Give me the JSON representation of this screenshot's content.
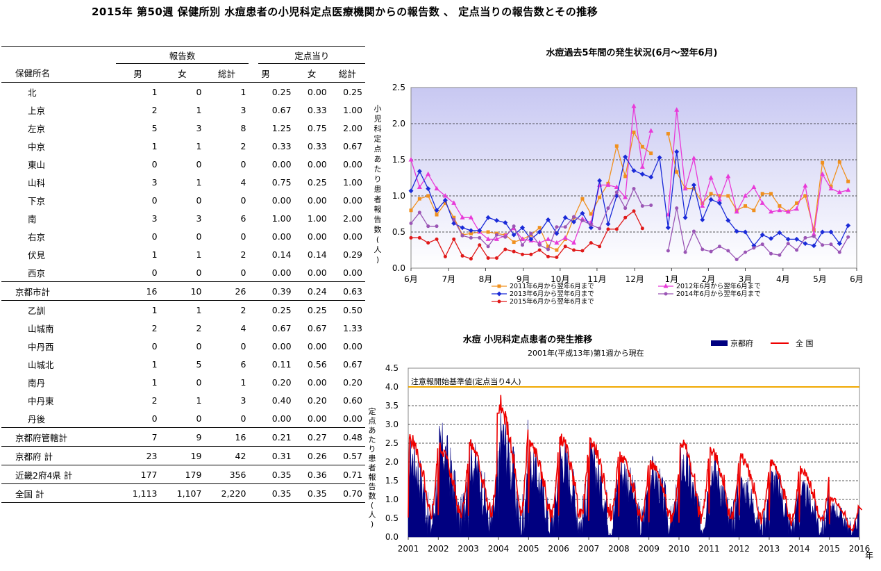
{
  "page_title": "2015年 第50週 保健所別 水痘患者の小児科定点医療機関からの報告数 、 定点当りの報告数とその推移",
  "table": {
    "group_headers": {
      "reports": "報告数",
      "per_sentinel": "定点当り"
    },
    "col_headers": [
      "保健所名",
      "男",
      "女",
      "総計",
      "男",
      "女",
      "総計"
    ],
    "rows": [
      {
        "name": "北",
        "m": "1",
        "f": "0",
        "t": "1",
        "pm": "0.25",
        "pf": "0.00",
        "pt": "0.25"
      },
      {
        "name": "上京",
        "m": "2",
        "f": "1",
        "t": "3",
        "pm": "0.67",
        "pf": "0.33",
        "pt": "1.00"
      },
      {
        "name": "左京",
        "m": "5",
        "f": "3",
        "t": "8",
        "pm": "1.25",
        "pf": "0.75",
        "pt": "2.00"
      },
      {
        "name": "中京",
        "m": "1",
        "f": "1",
        "t": "2",
        "pm": "0.33",
        "pf": "0.33",
        "pt": "0.67"
      },
      {
        "name": "東山",
        "m": "0",
        "f": "0",
        "t": "0",
        "pm": "0.00",
        "pf": "0.00",
        "pt": "0.00"
      },
      {
        "name": "山科",
        "m": "3",
        "f": "1",
        "t": "4",
        "pm": "0.75",
        "pf": "0.25",
        "pt": "1.00"
      },
      {
        "name": "下京",
        "m": "0",
        "f": "0",
        "t": "0",
        "pm": "0.00",
        "pf": "0.00",
        "pt": "0.00"
      },
      {
        "name": "南",
        "m": "3",
        "f": "3",
        "t": "6",
        "pm": "1.00",
        "pf": "1.00",
        "pt": "2.00"
      },
      {
        "name": "右京",
        "m": "0",
        "f": "0",
        "t": "0",
        "pm": "0.00",
        "pf": "0.00",
        "pt": "0.00"
      },
      {
        "name": "伏見",
        "m": "1",
        "f": "1",
        "t": "2",
        "pm": "0.14",
        "pf": "0.14",
        "pt": "0.29"
      },
      {
        "name": "西京",
        "m": "0",
        "f": "0",
        "t": "0",
        "pm": "0.00",
        "pf": "0.00",
        "pt": "0.00"
      },
      {
        "name": "京都市計",
        "m": "16",
        "f": "10",
        "t": "26",
        "pm": "0.39",
        "pf": "0.24",
        "pt": "0.63",
        "total": true
      },
      {
        "name": "乙訓",
        "m": "1",
        "f": "1",
        "t": "2",
        "pm": "0.25",
        "pf": "0.25",
        "pt": "0.50"
      },
      {
        "name": "山城南",
        "m": "2",
        "f": "2",
        "t": "4",
        "pm": "0.67",
        "pf": "0.67",
        "pt": "1.33"
      },
      {
        "name": "中丹西",
        "m": "0",
        "f": "0",
        "t": "0",
        "pm": "0.00",
        "pf": "0.00",
        "pt": "0.00"
      },
      {
        "name": "山城北",
        "m": "1",
        "f": "5",
        "t": "6",
        "pm": "0.11",
        "pf": "0.56",
        "pt": "0.67"
      },
      {
        "name": "南丹",
        "m": "1",
        "f": "0",
        "t": "1",
        "pm": "0.20",
        "pf": "0.00",
        "pt": "0.20"
      },
      {
        "name": "中丹東",
        "m": "2",
        "f": "1",
        "t": "3",
        "pm": "0.40",
        "pf": "0.20",
        "pt": "0.60"
      },
      {
        "name": "丹後",
        "m": "0",
        "f": "0",
        "t": "0",
        "pm": "0.00",
        "pf": "0.00",
        "pt": "0.00"
      },
      {
        "name": "京都府管轄計",
        "m": "7",
        "f": "9",
        "t": "16",
        "pm": "0.21",
        "pf": "0.27",
        "pt": "0.48",
        "total": true
      },
      {
        "name": "京都府 計",
        "m": "23",
        "f": "19",
        "t": "42",
        "pm": "0.31",
        "pf": "0.26",
        "pt": "0.57",
        "total": true
      },
      {
        "name": "近畿2府4県 計",
        "m": "177",
        "f": "179",
        "t": "356",
        "pm": "0.35",
        "pf": "0.36",
        "pt": "0.71",
        "total": true
      },
      {
        "name": "全国 計",
        "m": "1,113",
        "f": "1,107",
        "t": "2,220",
        "pm": "0.35",
        "pf": "0.35",
        "pt": "0.70",
        "total": true
      }
    ]
  },
  "chart_data": [
    {
      "type": "line",
      "title": "水痘過去5年間の発生状況(6月～翌年6月)",
      "ylabel": "小児科定点あたり患者報告数(人)",
      "ylim": [
        0,
        2.5
      ],
      "yticks": [
        "0.0",
        "0.5",
        "1.0",
        "1.5",
        "2.0",
        "2.5"
      ],
      "xticks": [
        "6月",
        "7月",
        "8月",
        "9月",
        "10月",
        "11月",
        "12月",
        "1月",
        "2月",
        "3月",
        "4月",
        "5月",
        "6月"
      ],
      "x_range": [
        0,
        52
      ],
      "grid": "horizontal dashed",
      "legend_position": "bottom",
      "series": [
        {
          "name": "2011年6月から翌年6月まで",
          "color": "#f0901e",
          "marker": "square",
          "values": [
            0.8,
            0.96,
            1.0,
            0.74,
            0.9,
            0.7,
            0.46,
            0.48,
            0.5,
            0.5,
            0.48,
            0.46,
            0.36,
            0.4,
            0.46,
            0.56,
            0.3,
            0.25,
            0.4,
            0.7,
            0.96,
            0.75,
            0.98,
            1.17,
            1.69,
            1.27,
            1.88,
            1.68,
            1.59,
            null,
            1.86,
            1.33,
            1.1,
            1.1,
            0.9,
            1.03,
            1.0,
            1.0,
            0.8,
            0.86,
            0.8,
            1.03,
            1.03,
            0.86,
            0.78,
            0.9,
            1.0,
            0.53,
            1.46,
            1.13,
            1.47,
            1.2
          ]
        },
        {
          "name": "2012年6月から翌年6月まで",
          "color": "#e83ad8",
          "marker": "triangle",
          "values": [
            1.5,
            1.12,
            1.3,
            1.1,
            1.0,
            0.9,
            0.7,
            0.7,
            0.5,
            0.4,
            0.4,
            0.45,
            0.55,
            0.4,
            0.38,
            0.35,
            0.4,
            0.35,
            0.42,
            0.35,
            0.68,
            0.63,
            1.15,
            1.15,
            1.12,
            0.98,
            2.24,
            1.4,
            1.9,
            null,
            0.74,
            2.19,
            1.1,
            1.52,
            0.86,
            1.25,
            0.95,
            1.27,
            0.78,
            1.0,
            1.12,
            0.9,
            0.78,
            0.8,
            0.78,
            0.82,
            1.14,
            0.47,
            1.3,
            1.1,
            1.05,
            1.08
          ]
        },
        {
          "name": "2013年6月から翌年6月まで",
          "color": "#1a2ad8",
          "marker": "diamond",
          "values": [
            1.07,
            1.34,
            1.1,
            0.8,
            0.94,
            0.62,
            0.56,
            0.52,
            0.52,
            0.7,
            0.66,
            0.63,
            0.46,
            0.56,
            0.4,
            0.5,
            0.67,
            0.48,
            0.7,
            0.64,
            0.76,
            0.56,
            1.21,
            0.61,
            1.0,
            1.54,
            1.35,
            1.3,
            1.26,
            1.53,
            0.56,
            1.61,
            0.7,
            1.15,
            0.67,
            0.95,
            0.9,
            0.66,
            0.51,
            0.5,
            0.31,
            0.46,
            0.41,
            0.49,
            0.4,
            0.4,
            0.34,
            0.31,
            0.5,
            0.5,
            0.34,
            0.59
          ]
        },
        {
          "name": "2014年6月から翌年6月まで",
          "color": "#9a55b5",
          "marker": "circle",
          "values": [
            0.62,
            0.77,
            0.58,
            0.58,
            null,
            0.67,
            0.45,
            0.42,
            0.42,
            0.3,
            0.46,
            0.43,
            0.58,
            0.32,
            0.48,
            0.32,
            0.26,
            0.57,
            0.57,
            0.71,
            0.66,
            0.6,
            0.55,
            0.83,
            1.05,
            0.83,
            1.1,
            0.86,
            0.87,
            null,
            0.24,
            0.83,
            0.22,
            0.51,
            0.26,
            0.23,
            0.3,
            0.24,
            0.12,
            0.22,
            0.28,
            0.33,
            0.2,
            0.18,
            0.34,
            0.25,
            0.42,
            0.44,
            0.32,
            0.33,
            0.22,
            0.43
          ]
        },
        {
          "name": "2015年6月から翌年6月まで",
          "color": "#e01818",
          "marker": "circle",
          "values": [
            0.42,
            0.42,
            0.35,
            0.4,
            0.16,
            0.4,
            0.17,
            0.13,
            0.32,
            0.14,
            0.14,
            0.26,
            0.23,
            0.19,
            0.19,
            0.25,
            0.16,
            0.15,
            0.3,
            0.25,
            0.24,
            0.35,
            0.3,
            0.54,
            0.54,
            0.7,
            0.79,
            0.55
          ]
        }
      ]
    },
    {
      "type": "area",
      "title": "水痘 小児科定点患者の発生推移",
      "subtitle": "2001年(平成13年)第1週から現在",
      "ylabel": "定点あたり患者報告数(人)",
      "xlabel": "年",
      "ylim": [
        0,
        4.5
      ],
      "yticks": [
        "0.0",
        "0.5",
        "1.0",
        "1.5",
        "2.0",
        "2.5",
        "3.0",
        "3.5",
        "4.0",
        "4.5"
      ],
      "xticks": [
        "2001",
        "2002",
        "2003",
        "2004",
        "2005",
        "2006",
        "2007",
        "2008",
        "2009",
        "2010",
        "2011",
        "2012",
        "2013",
        "2014",
        "2015",
        "2016"
      ],
      "legend_position": "top-right",
      "threshold": {
        "label": "注意報開始基準値(定点当り4人)",
        "value": 4.0,
        "color": "#f0a800"
      },
      "series": [
        {
          "name": "京都府",
          "color": "#000080",
          "style": "area",
          "yearly_peaks": [
            2.5,
            2.8,
            2.4,
            3.2,
            2.2,
            2.5,
            2.3,
            2.1,
            2.0,
            2.3,
            2.2,
            1.6,
            1.8,
            1.4,
            0.9
          ],
          "yearly_troughs": [
            0.3,
            0.3,
            0.3,
            0.3,
            0.3,
            0.3,
            0.3,
            0.3,
            0.3,
            0.3,
            0.25,
            0.25,
            0.2,
            0.2,
            0.15
          ]
        },
        {
          "name": "全 国",
          "color": "#ee0000",
          "style": "line",
          "yearly_peaks": [
            3.1,
            2.8,
            2.9,
            4.0,
            2.9,
            3.1,
            3.0,
            2.5,
            2.3,
            3.0,
            2.7,
            2.5,
            2.3,
            2.1,
            1.2
          ],
          "yearly_troughs": [
            0.55,
            0.6,
            0.6,
            0.6,
            0.55,
            0.55,
            0.55,
            0.5,
            0.5,
            0.5,
            0.5,
            0.45,
            0.4,
            0.4,
            0.2
          ]
        }
      ]
    }
  ]
}
